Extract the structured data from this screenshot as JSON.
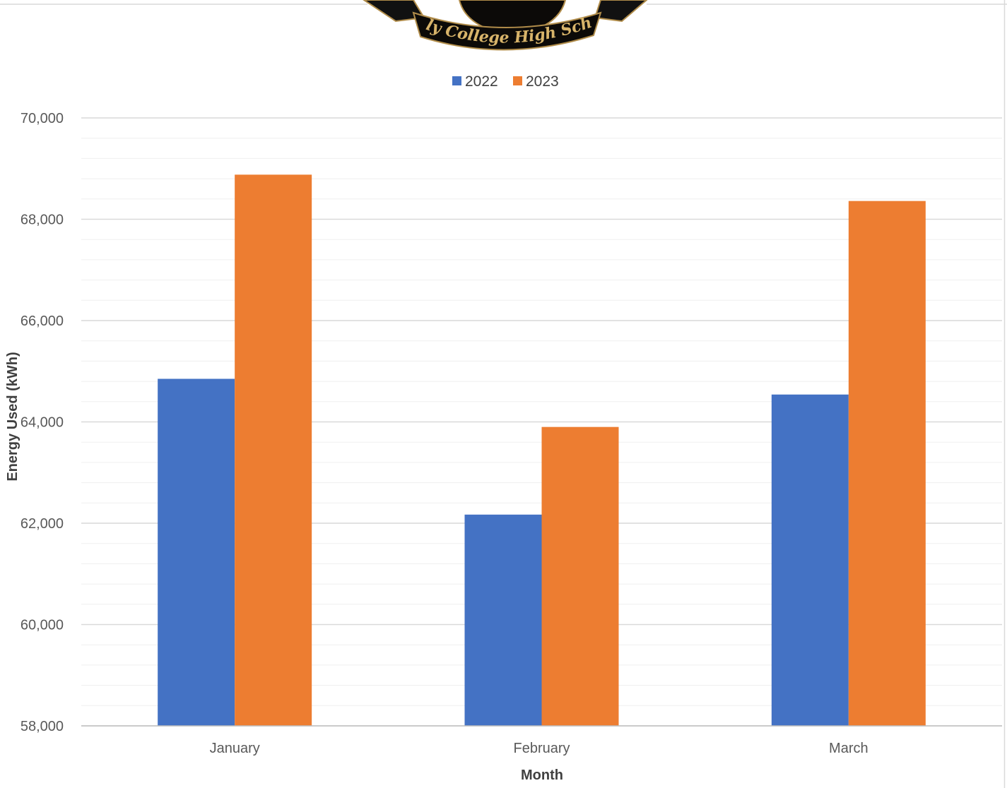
{
  "logo": {
    "text": "Early College High School"
  },
  "chart_data": {
    "type": "bar",
    "categories": [
      "January",
      "February",
      "March"
    ],
    "series": [
      {
        "name": "2022",
        "values": [
          64850,
          62170,
          64540
        ],
        "color": "#4472c4"
      },
      {
        "name": "2023",
        "values": [
          68880,
          63900,
          68360
        ],
        "color": "#ed7d31"
      }
    ],
    "title": "",
    "xlabel": "Month",
    "ylabel": "Energy Used (kWh)",
    "ylim": [
      58000,
      70000
    ],
    "y_ticks": [
      "58,000",
      "60,000",
      "62,000",
      "64,000",
      "66,000",
      "68,000",
      "70,000"
    ],
    "grid": true,
    "legend_position": "top"
  }
}
